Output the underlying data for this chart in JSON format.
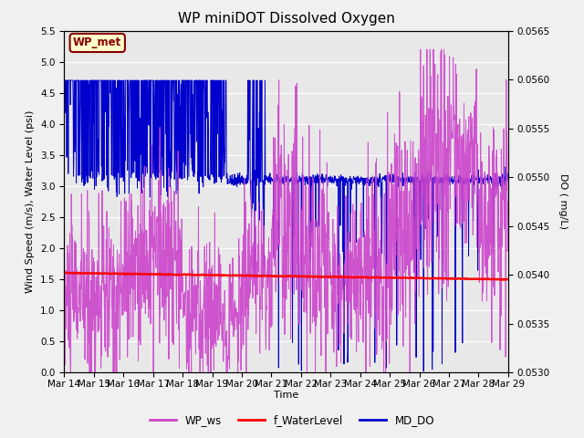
{
  "title": "WP miniDOT Dissolved Oxygen",
  "xlabel": "Time",
  "ylabel_left": "Wind Speed (m/s), Water Level (psi)",
  "ylabel_right": "DO ( mg/L)",
  "xlim_days": [
    0,
    15
  ],
  "ylim_left": [
    0.0,
    5.5
  ],
  "ylim_right": [
    0.053,
    0.0565
  ],
  "yticks_left": [
    0.0,
    0.5,
    1.0,
    1.5,
    2.0,
    2.5,
    3.0,
    3.5,
    4.0,
    4.5,
    5.0,
    5.5
  ],
  "yticks_right": [
    0.053,
    0.0535,
    0.054,
    0.0545,
    0.055,
    0.0555,
    0.056,
    0.0565
  ],
  "xtick_labels": [
    "Mar 14",
    "Mar 15",
    "Mar 16",
    "Mar 17",
    "Mar 18",
    "Mar 19",
    "Mar 20",
    "Mar 21",
    "Mar 22",
    "Mar 23",
    "Mar 24",
    "Mar 25",
    "Mar 26",
    "Mar 27",
    "Mar 28",
    "Mar 29"
  ],
  "background_color": "#f0f0f0",
  "plot_bg_color": "#e8e8e8",
  "wp_met_label": "WP_met",
  "wp_met_bg": "#ffffcc",
  "wp_met_border": "#880000",
  "legend_labels": [
    "WP_ws",
    "f_WaterLevel",
    "MD_DO"
  ],
  "legend_colors": [
    "#cc44cc",
    "#ff0000",
    "#0000cc"
  ],
  "wp_ws_color": "#cc44cc",
  "f_wl_color": "#ff0000",
  "md_do_color": "#0000cc",
  "title_fontsize": 11,
  "axis_label_fontsize": 8,
  "tick_fontsize": 7.5
}
